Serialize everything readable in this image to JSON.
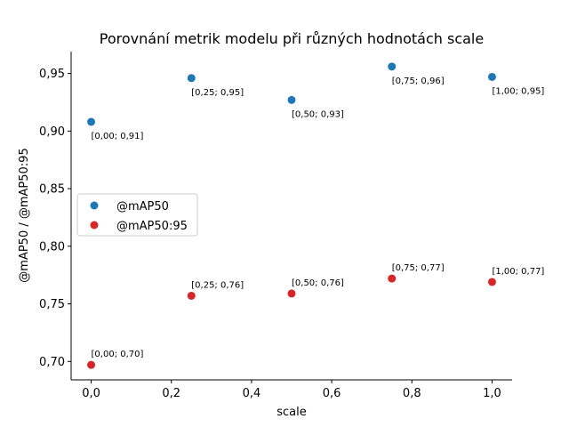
{
  "chart_data": {
    "type": "scatter",
    "title": "Porovnání metrik modelu při různých hodnotách scale",
    "xlabel": "scale",
    "ylabel": "@mAP50 / @mAP50:95",
    "xlim": [
      -0.05,
      1.05
    ],
    "ylim": [
      0.684,
      0.969
    ],
    "x_ticks": [
      0.0,
      0.2,
      0.4,
      0.6,
      0.8,
      1.0
    ],
    "x_tick_labels": [
      "0,0",
      "0,2",
      "0,4",
      "0,6",
      "0,8",
      "1,0"
    ],
    "y_ticks": [
      0.7,
      0.75,
      0.8,
      0.85,
      0.9,
      0.95
    ],
    "y_tick_labels": [
      "0,70",
      "0,75",
      "0,80",
      "0,85",
      "0,90",
      "0,95"
    ],
    "grid": false,
    "legend_position": "center-left",
    "x": [
      0.0,
      0.25,
      0.5,
      0.75,
      1.0
    ],
    "series": [
      {
        "name": "@mAP50",
        "color": "#1f77b4",
        "values": [
          0.908,
          0.946,
          0.927,
          0.956,
          0.947
        ],
        "labels": [
          "[0,00; 0,91]",
          "[0,25; 0,95]",
          "[0,50; 0,93]",
          "[0,75; 0,96]",
          "[1,00; 0,95]"
        ],
        "label_position": "below"
      },
      {
        "name": "@mAP50:95",
        "color": "#d62728",
        "values": [
          0.697,
          0.757,
          0.759,
          0.772,
          0.769
        ],
        "labels": [
          "[0,00; 0,70]",
          "[0,25; 0,76]",
          "[0,50; 0,76]",
          "[0,75; 0,77]",
          "[1,00; 0,77]"
        ],
        "label_position": "above"
      }
    ]
  }
}
